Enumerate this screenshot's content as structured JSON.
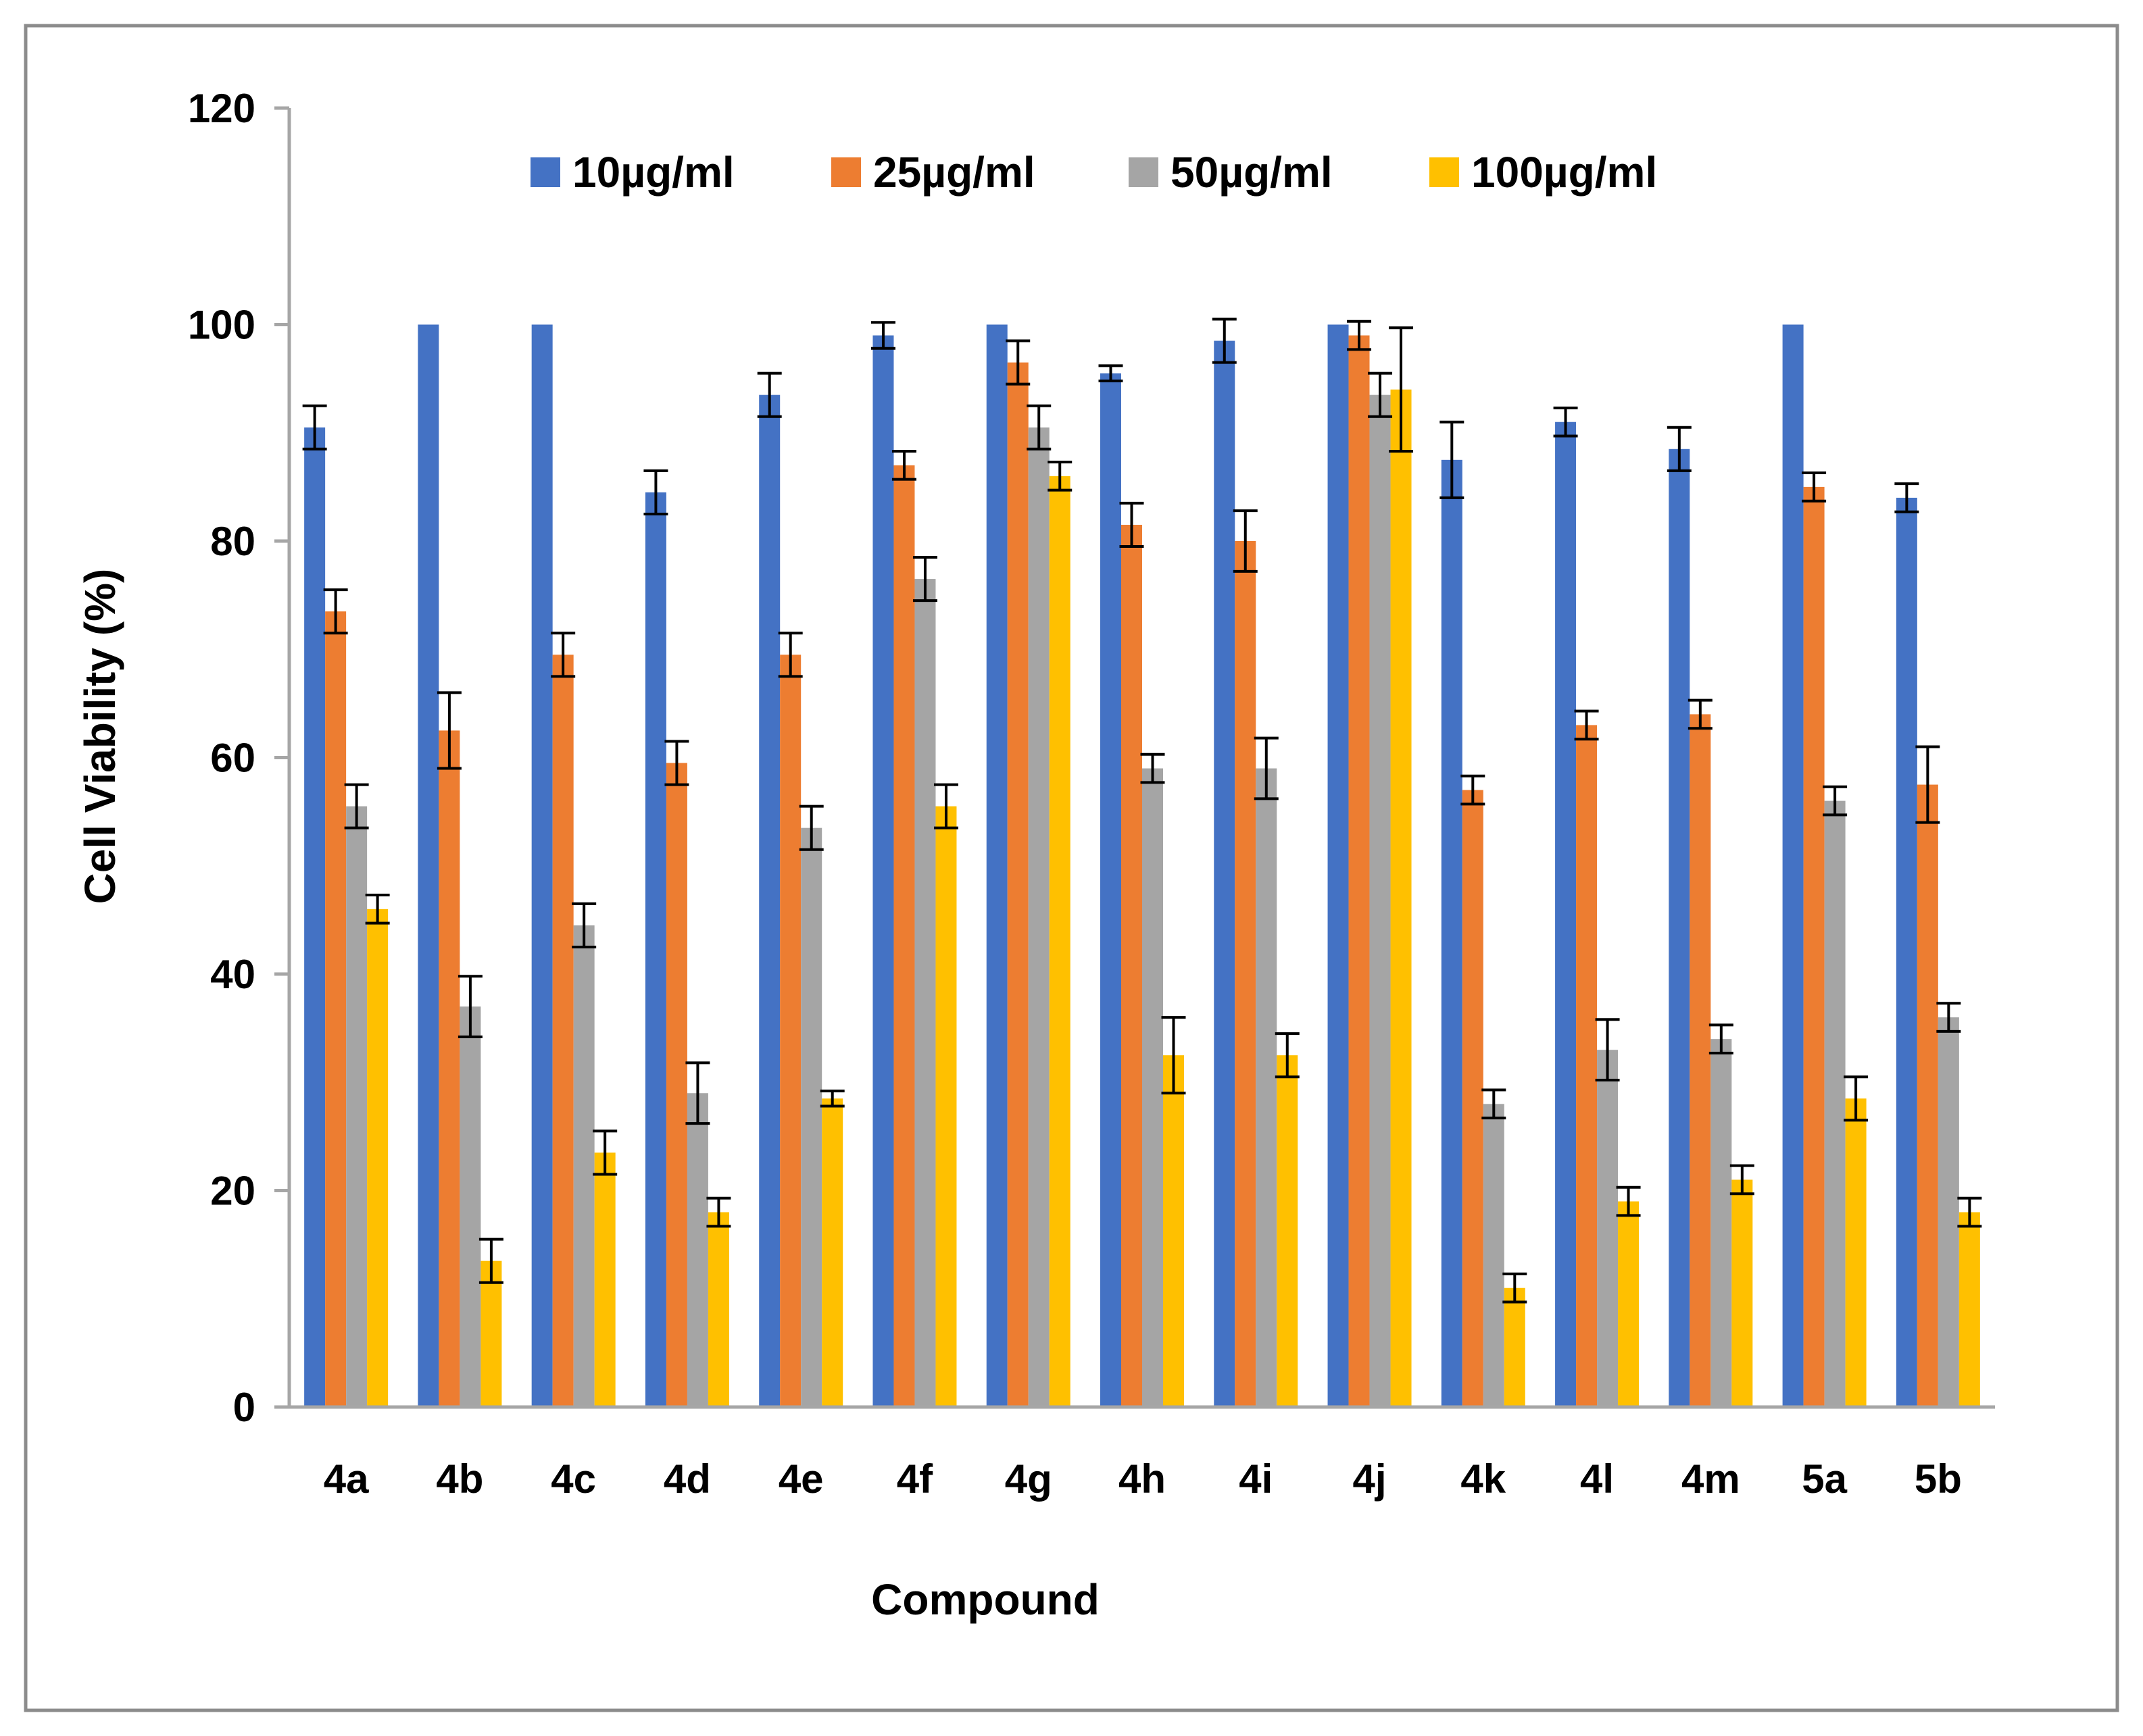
{
  "chart_data": {
    "type": "bar",
    "title": "",
    "xlabel": "Compound",
    "ylabel": "Cell Viability (%)",
    "ylim": [
      0,
      120
    ],
    "yticks": [
      0,
      20,
      40,
      60,
      80,
      100,
      120
    ],
    "grid": false,
    "legend_position": "top",
    "categories": [
      "4a",
      "4b",
      "4c",
      "4d",
      "4e",
      "4f",
      "4g",
      "4h",
      "4i",
      "4j",
      "4k",
      "4l",
      "4m",
      "5a",
      "5b"
    ],
    "series": [
      {
        "name": "10µg/ml",
        "color": "#4472C4",
        "values": [
          90.5,
          100,
          100,
          84.5,
          93.5,
          99,
          100,
          95.5,
          98.5,
          100,
          87.5,
          91,
          88.5,
          100,
          84
        ],
        "errors": [
          2,
          0,
          0,
          2,
          2,
          1.2,
          0,
          0.7,
          2,
          0,
          3.5,
          1.3,
          2,
          0,
          1.3
        ]
      },
      {
        "name": "25µg/ml",
        "color": "#ED7D31",
        "values": [
          73.5,
          62.5,
          69.5,
          59.5,
          69.5,
          87,
          96.5,
          81.5,
          80,
          99,
          57,
          63,
          64,
          85,
          57.5
        ],
        "errors": [
          2,
          3.5,
          2,
          2,
          2,
          1.3,
          2,
          2,
          2.8,
          1.3,
          1.3,
          1.3,
          1.3,
          1.3,
          3.5
        ]
      },
      {
        "name": "50µg/ml",
        "color": "#A5A5A5",
        "values": [
          55.5,
          37,
          44.5,
          29,
          53.5,
          76.5,
          90.5,
          59,
          59,
          93.5,
          28,
          33,
          34,
          56,
          36
        ],
        "errors": [
          2,
          2.8,
          2,
          2.8,
          2,
          2,
          2,
          1.3,
          2.8,
          2,
          1.3,
          2.8,
          1.3,
          1.3,
          1.3
        ]
      },
      {
        "name": "100µg/ml",
        "color": "#FFC000",
        "values": [
          46,
          13.5,
          23.5,
          18,
          28.5,
          55.5,
          86,
          32.5,
          32.5,
          94,
          11,
          19,
          21,
          28.5,
          18
        ],
        "errors": [
          1.3,
          2,
          2,
          1.3,
          0.7,
          2,
          1.3,
          3.5,
          2,
          5.7,
          1.3,
          1.3,
          1.3,
          2,
          1.3
        ]
      }
    ]
  }
}
